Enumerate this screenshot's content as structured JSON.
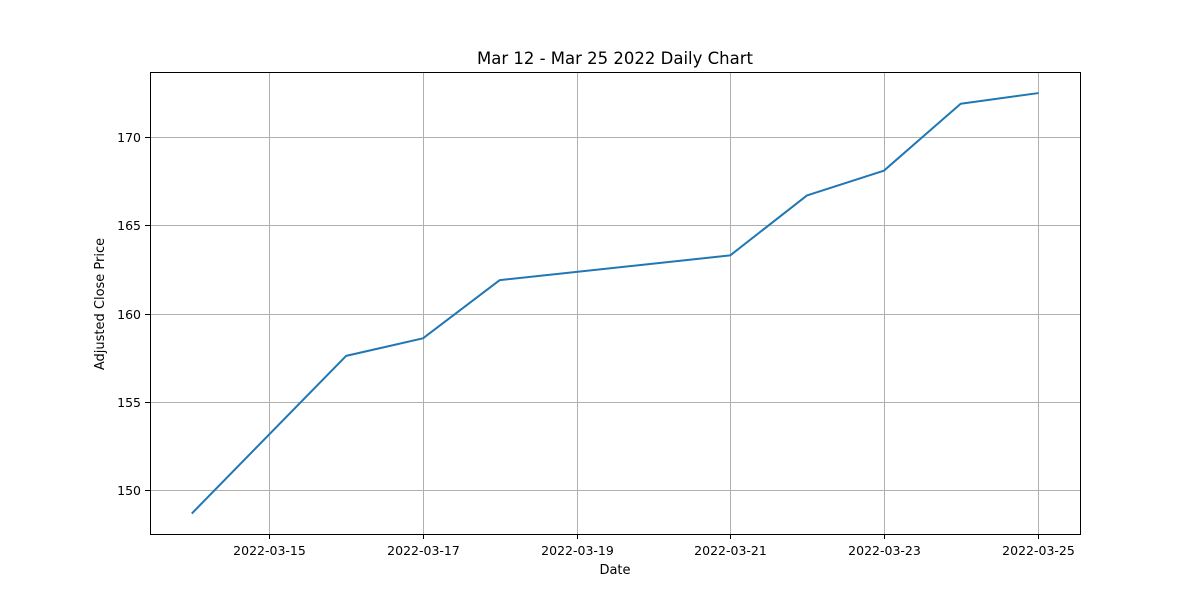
{
  "chart_data": {
    "type": "line",
    "title": "Mar 12 - Mar 25 2022 Daily Chart",
    "xlabel": "Date",
    "ylabel": "Adjusted Close Price",
    "x": [
      "2022-03-14",
      "2022-03-16",
      "2022-03-17",
      "2022-03-18",
      "2022-03-21",
      "2022-03-22",
      "2022-03-23",
      "2022-03-24",
      "2022-03-25"
    ],
    "series": [
      {
        "values": [
          148.7,
          157.6,
          158.6,
          161.9,
          163.3,
          166.7,
          168.1,
          171.9,
          172.5
        ]
      }
    ],
    "xlim": [
      "2022-03-13",
      "2022-03-25"
    ],
    "ylim": [
      147.5,
      173.7
    ],
    "x_ticks": [
      "2022-03-15",
      "2022-03-17",
      "2022-03-19",
      "2022-03-21",
      "2022-03-23",
      "2022-03-25"
    ],
    "y_ticks": [
      150,
      155,
      160,
      165,
      170
    ],
    "grid": true,
    "color": "#1f77b4"
  }
}
